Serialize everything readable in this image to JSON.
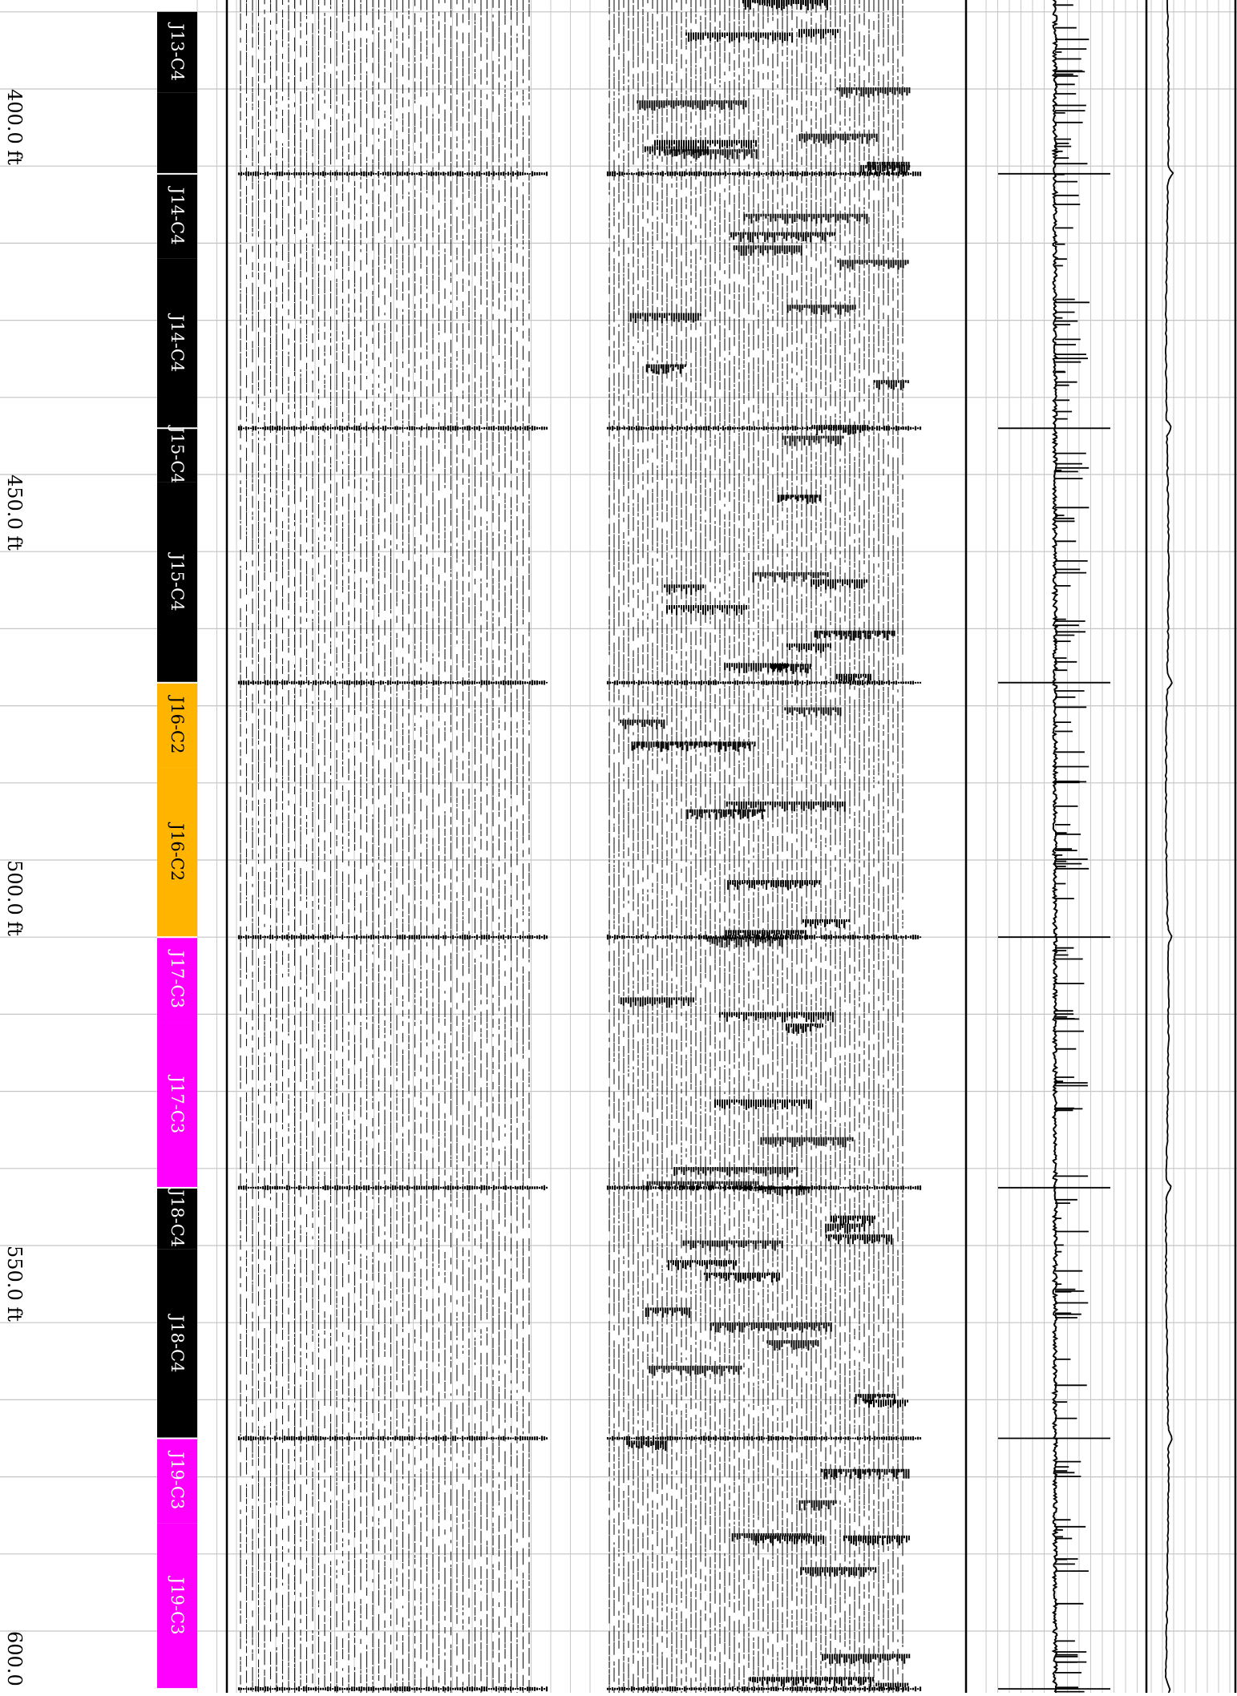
{
  "chart_data": {
    "type": "well-log",
    "orientation": "depth-axis-rotated",
    "depth_range": [
      390,
      610
    ],
    "depth_unit": "ft",
    "depth_ticks": [
      "400.0 ft",
      "450.0 ft",
      "500.0 ft",
      "550.0 ft",
      "600.0 ft"
    ],
    "depth_tick_values": [
      400,
      450,
      500,
      550,
      600
    ],
    "core_segments": [
      {
        "label": "J13-C4",
        "top": 390,
        "bottom": 400.5,
        "color": "#000000",
        "text_color": "#ffffff"
      },
      {
        "label": "",
        "top": 400.5,
        "bottom": 411,
        "color": "#000000",
        "text_color": "#ffffff"
      },
      {
        "label": "J14-C4",
        "top": 411,
        "bottom": 422,
        "color": "#000000",
        "text_color": "#ffffff"
      },
      {
        "label": "J14-C4",
        "top": 422,
        "bottom": 444,
        "color": "#000000",
        "text_color": "#ffffff"
      },
      {
        "label": "J15-C4",
        "top": 444,
        "bottom": 451,
        "color": "#000000",
        "text_color": "#ffffff"
      },
      {
        "label": "J15-C4",
        "top": 451,
        "bottom": 477,
        "color": "#000000",
        "text_color": "#ffffff"
      },
      {
        "label": "J16-C2",
        "top": 477,
        "bottom": 488,
        "color": "#ffb400",
        "text_color": "#000000"
      },
      {
        "label": "J16-C2",
        "top": 488,
        "bottom": 510,
        "color": "#ffb400",
        "text_color": "#000000"
      },
      {
        "label": "J17-C3",
        "top": 510,
        "bottom": 521,
        "color": "#ff00ff",
        "text_color": "#ffffff"
      },
      {
        "label": "J17-C3",
        "top": 521,
        "bottom": 542.5,
        "color": "#ff00ff",
        "text_color": "#ffffff"
      },
      {
        "label": "J18-C4",
        "top": 542.5,
        "bottom": 550.5,
        "color": "#000000",
        "text_color": "#ffffff"
      },
      {
        "label": "J18-C4",
        "top": 550.5,
        "bottom": 575,
        "color": "#000000",
        "text_color": "#ffffff"
      },
      {
        "label": "J19-C3",
        "top": 575,
        "bottom": 586,
        "color": "#ff00ff",
        "text_color": "#ffffff"
      },
      {
        "label": "J19-C3",
        "top": 586,
        "bottom": 607.5,
        "color": "#ff00ff",
        "text_color": "#ffffff"
      },
      {
        "label": "",
        "top": 607.5,
        "bottom": 610,
        "color": "#ffffff",
        "text_color": "#000000"
      }
    ],
    "section_boundary_depths": [
      411,
      444,
      477,
      510,
      542.5,
      575,
      607.5
    ],
    "tracks": [
      {
        "name": "waveform-track-1",
        "type": "variable-density-waveform"
      },
      {
        "name": "waveform-track-2",
        "type": "variable-density-waveform"
      },
      {
        "name": "spike-curve-track",
        "type": "line"
      },
      {
        "name": "smooth-curve-track",
        "type": "line"
      }
    ],
    "grid": true
  }
}
